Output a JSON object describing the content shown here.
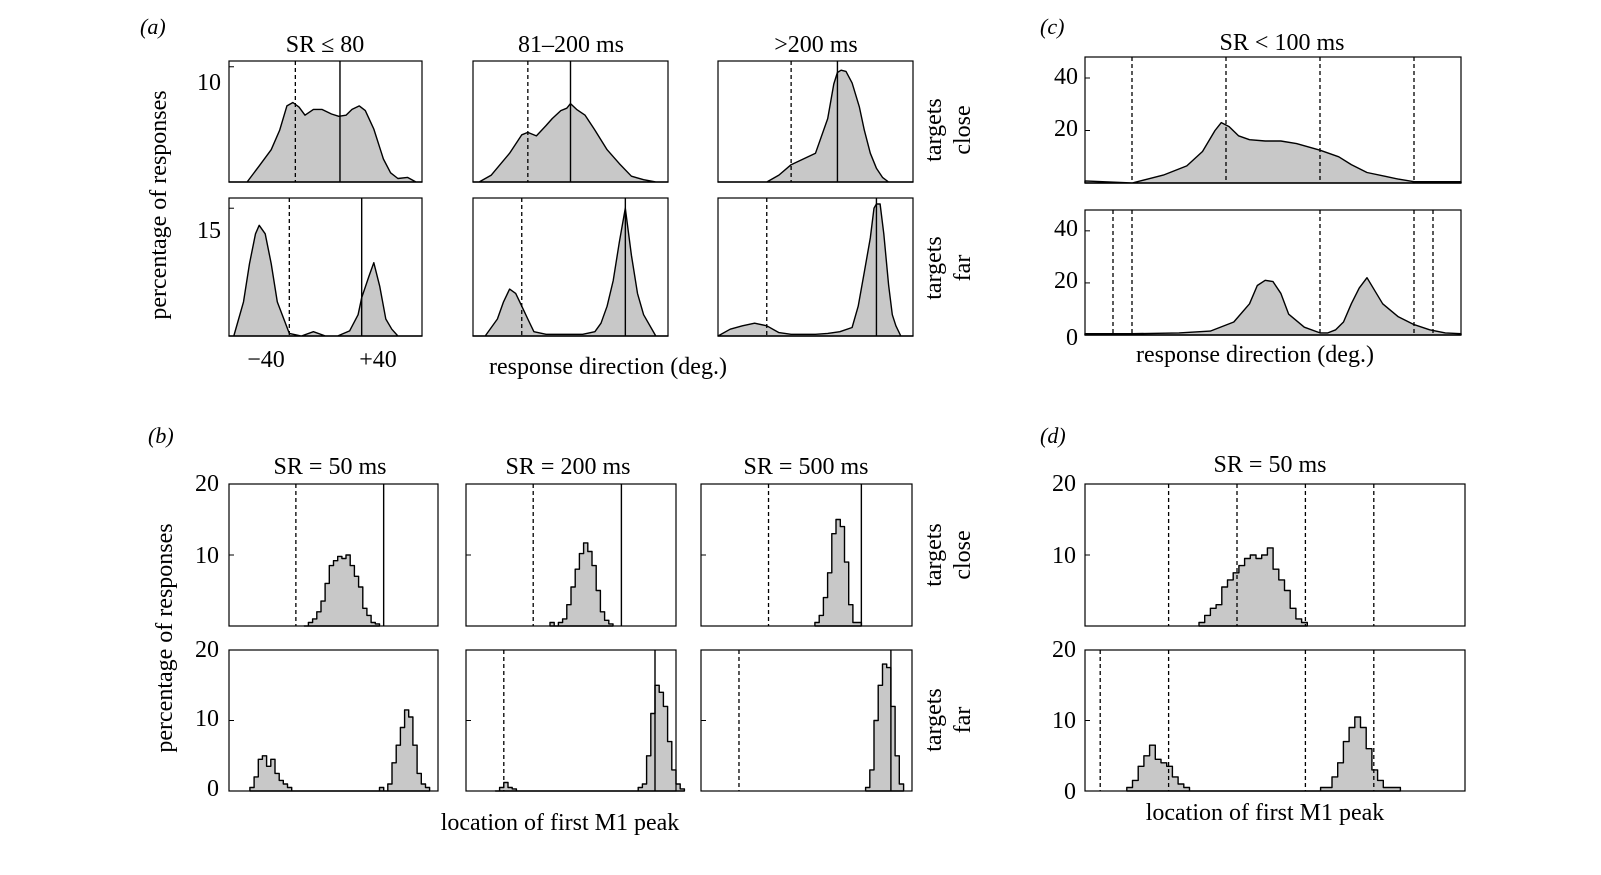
{
  "chart_data": [
    {
      "id": "a",
      "panel_label": "(a)",
      "type": "area",
      "xlabel": "response direction (deg.)",
      "ylabel": "percentage of responses",
      "row_labels": [
        [
          "targets",
          "close"
        ],
        [
          "targets",
          "far"
        ]
      ],
      "x_tick_labels": [
        "−40",
        "+40"
      ],
      "x_ticks": [
        -40,
        40
      ],
      "xlim": [
        -80,
        80
      ],
      "row_ylims": [
        [
          0,
          10.5
        ],
        [
          0,
          16.2
        ]
      ],
      "row_y_tick_labels": [
        [
          "10"
        ],
        [
          "15"
        ]
      ],
      "row_y_ticks": [
        [
          10
        ],
        [
          15
        ]
      ],
      "columns": [
        {
          "title": "SR ≤ 80",
          "rows": [
            {
              "dashed": [
                -25
              ],
              "solid": [
                12
              ],
              "x": [
                -80,
                -65,
                -55,
                -45,
                -38,
                -32,
                -27,
                -22,
                -17,
                -10,
                -3,
                5,
                11,
                17,
                22,
                28,
                33,
                40,
                48,
                54,
                60,
                68,
                75,
                80
              ],
              "y": [
                0,
                0,
                1.4,
                2.8,
                4.5,
                6.6,
                6.9,
                6.5,
                5.8,
                6.3,
                6.3,
                5.9,
                5.7,
                5.8,
                6.3,
                6.6,
                6.2,
                4.6,
                2.0,
                0.8,
                0.3,
                0.4,
                0,
                0
              ]
            },
            {
              "dashed": [
                -30
              ],
              "solid": [
                30
              ],
              "x": [
                -80,
                -76,
                -68,
                -63,
                -58,
                -55,
                -50,
                -45,
                -40,
                -30,
                -20,
                -10,
                0,
                10,
                20,
                27,
                30,
                36,
                40,
                45,
                50,
                55,
                60,
                80
              ],
              "y": [
                0,
                0,
                4.0,
                8.5,
                12.0,
                13.0,
                12.0,
                8.5,
                4.0,
                0.3,
                0,
                0.5,
                0,
                0,
                0.6,
                2.5,
                4.5,
                7.0,
                8.6,
                5.8,
                2.0,
                0.8,
                0,
                0
              ]
            }
          ]
        },
        {
          "title": "81–200 ms",
          "rows": [
            {
              "dashed": [
                -35
              ],
              "solid": [
                0
              ],
              "x": [
                -80,
                -75,
                -65,
                -50,
                -40,
                -35,
                -28,
                -20,
                -15,
                -8,
                -3,
                0,
                5,
                12,
                20,
                30,
                40,
                50,
                60,
                70,
                80
              ],
              "y": [
                0,
                0,
                0.6,
                2.5,
                4.1,
                4.3,
                4.0,
                4.9,
                5.5,
                6.2,
                6.4,
                6.8,
                6.3,
                5.8,
                4.5,
                2.8,
                1.6,
                0.5,
                0.2,
                0,
                0
              ]
            },
            {
              "dashed": [
                -40
              ],
              "solid": [
                45
              ],
              "x": [
                -80,
                -70,
                -60,
                -55,
                -50,
                -45,
                -40,
                -35,
                -30,
                -20,
                -10,
                0,
                10,
                20,
                25,
                30,
                35,
                40,
                45,
                50,
                55,
                60,
                70,
                80
              ],
              "y": [
                0,
                0,
                2.0,
                4.0,
                5.5,
                5.0,
                3.5,
                2.0,
                0.5,
                0.2,
                0.2,
                0.2,
                0.2,
                0.5,
                1.5,
                3.5,
                6.5,
                11.0,
                15.0,
                9.5,
                5.0,
                2.5,
                0,
                0
              ]
            }
          ]
        },
        {
          "title": ">200 ms",
          "rows": [
            {
              "dashed": [
                -20
              ],
              "solid": [
                18
              ],
              "x": [
                -80,
                -70,
                -60,
                -50,
                -40,
                -30,
                -20,
                -10,
                0,
                10,
                15,
                18,
                21,
                25,
                30,
                36,
                40,
                45,
                50,
                55,
                60,
                70,
                80
              ],
              "y": [
                0,
                0,
                0,
                0,
                0,
                0.6,
                1.5,
                2.0,
                2.5,
                5.5,
                8.5,
                9.5,
                9.7,
                9.6,
                8.6,
                6.5,
                4.5,
                2.5,
                1.2,
                0.4,
                0,
                0,
                0
              ]
            },
            {
              "dashed": [
                -40
              ],
              "solid": [
                50
              ],
              "x": [
                -80,
                -70,
                -60,
                -50,
                -40,
                -30,
                -20,
                -10,
                0,
                10,
                20,
                30,
                35,
                40,
                45,
                48,
                50,
                53,
                56,
                60,
                63,
                66,
                70,
                80
              ],
              "y": [
                0,
                0.8,
                1.2,
                1.5,
                1.2,
                0.4,
                0.2,
                0.2,
                0.2,
                0.3,
                0.5,
                1.0,
                3.5,
                7.5,
                11.5,
                15.0,
                15.5,
                15.5,
                12.0,
                6.0,
                2.5,
                1.2,
                0,
                0
              ]
            }
          ]
        }
      ]
    },
    {
      "id": "c",
      "panel_label": "(c)",
      "type": "area",
      "title": "SR < 100 ms",
      "xlabel": "response direction (deg.)",
      "ylim": [
        0,
        48
      ],
      "xlim": [
        -120,
        120
      ],
      "y_tick_labels_top": [
        "20",
        "40"
      ],
      "y_ticks_top": [
        20,
        40
      ],
      "y_tick_labels_bottom": [
        "0",
        "20",
        "40"
      ],
      "y_ticks_bottom": [
        0,
        20,
        40
      ],
      "rows": [
        {
          "dashed": [
            -90,
            -30,
            30,
            90
          ],
          "x": [
            -120,
            -90,
            -80,
            -70,
            -55,
            -45,
            -37,
            -33,
            -28,
            -22,
            -15,
            -5,
            5,
            15,
            30,
            42,
            50,
            60,
            72,
            80,
            90,
            100,
            110,
            120
          ],
          "y": [
            0.8,
            0,
            1.5,
            3.0,
            6.5,
            12.0,
            20.0,
            23.0,
            21.5,
            18.0,
            16.5,
            16.0,
            16.0,
            15.0,
            12.5,
            10.0,
            7.0,
            4.0,
            2.5,
            1.5,
            0.5,
            0.5,
            0.5,
            0.5
          ]
        },
        {
          "dashed": [
            -150,
            -90,
            30,
            90,
            150
          ],
          "x": [
            -120,
            -90,
            -60,
            -40,
            -25,
            -15,
            -10,
            -5,
            0,
            5,
            10,
            20,
            30,
            35,
            40,
            45,
            50,
            55,
            60,
            65,
            70,
            80,
            90,
            100,
            110,
            120
          ],
          "y": [
            0.5,
            0.5,
            0.8,
            1.5,
            5.0,
            12.0,
            19.0,
            21.0,
            20.5,
            16.0,
            8.0,
            3.0,
            0.8,
            0.8,
            2.0,
            5.0,
            12.0,
            18.0,
            22.0,
            17.0,
            12.0,
            7.0,
            4.0,
            2.0,
            0.8,
            0.5
          ]
        }
      ]
    },
    {
      "id": "b",
      "panel_label": "(b)",
      "type": "histogram",
      "xlabel": "location of first M1 peak",
      "ylabel": "percentage of responses",
      "row_labels": [
        [
          "targets",
          "close"
        ],
        [
          "targets",
          "far"
        ]
      ],
      "ylim": [
        0,
        20
      ],
      "y_tick_labels_top": [
        "10",
        "20"
      ],
      "y_ticks_top": [
        10,
        20
      ],
      "y_tick_labels_bottom": [
        "0",
        "10",
        "20"
      ],
      "y_ticks_bottom": [
        0,
        10,
        20
      ],
      "xlim": [
        0,
        100
      ],
      "columns": [
        {
          "title": "SR = 50 ms",
          "rows": [
            {
              "dashed": [
                32
              ],
              "solid": [
                74
              ],
              "bin_start": 36,
              "bin_width": 2,
              "counts": [
                0,
                0.5,
                1,
                2,
                3.5,
                6,
                8.5,
                9.2,
                9.8,
                9.5,
                10,
                8.5,
                7,
                5.5,
                2.5,
                1.5,
                0.5,
                0.3
              ]
            },
            {
              "dashed": [],
              "solid": [],
              "bin_start": 10,
              "bin_width": 2,
              "counts": [
                0.5,
                2,
                4.5,
                5,
                3.5,
                4.5,
                2.5,
                1.5,
                1,
                0.5,
                0,
                0,
                0,
                0,
                0,
                0,
                0,
                0,
                0,
                0,
                0,
                0,
                0,
                0,
                0,
                0,
                0,
                0,
                0,
                0,
                0,
                0.5,
                0,
                1,
                4,
                6.5,
                9,
                11.5,
                10.5,
                6.5,
                2.5,
                1,
                0.5
              ]
            }
          ]
        },
        {
          "title": "SR = 200 ms",
          "rows": [
            {
              "dashed": [
                32
              ],
              "solid": [
                74
              ],
              "bin_start": 40,
              "bin_width": 2,
              "counts": [
                0.5,
                0,
                0.5,
                1,
                3,
                5.5,
                8,
                10.2,
                11.7,
                10.5,
                8.5,
                5,
                2,
                0.8,
                0.3
              ]
            },
            {
              "dashed": [
                18
              ],
              "solid": [
                90
              ],
              "bin_start": 14,
              "bin_width": 2,
              "counts": [
                0,
                0.5,
                1.2,
                0.5,
                0.3,
                0,
                0,
                0,
                0,
                0,
                0,
                0,
                0,
                0,
                0,
                0,
                0,
                0,
                0,
                0,
                0,
                0,
                0,
                0,
                0,
                0,
                0,
                0,
                0,
                0,
                0,
                0,
                0,
                0,
                0.5,
                1,
                5,
                11,
                15,
                14,
                12,
                7,
                3,
                1,
                0.3
              ]
            }
          ]
        },
        {
          "title": "SR = 500 ms",
          "rows": [
            {
              "dashed": [
                32
              ],
              "solid": [
                76
              ],
              "bin_start": 54,
              "bin_width": 2,
              "counts": [
                0.5,
                1.5,
                4,
                7.5,
                13,
                15,
                14,
                9,
                3,
                0.5,
                0.5
              ]
            },
            {
              "dashed": [
                18
              ],
              "solid": [
                90
              ],
              "bin_start": 78,
              "bin_width": 2,
              "counts": [
                0.5,
                3,
                10,
                15,
                18,
                17.5,
                12,
                5,
                1
              ]
            }
          ]
        }
      ]
    },
    {
      "id": "d",
      "panel_label": "(d)",
      "type": "histogram",
      "title": "SR = 50 ms",
      "xlabel": "location of first M1 peak",
      "ylim": [
        0,
        20
      ],
      "y_tick_labels_top": [
        "10",
        "20"
      ],
      "y_ticks_top": [
        10,
        20
      ],
      "y_tick_labels_bottom": [
        "0",
        "10",
        "20"
      ],
      "y_ticks_bottom": [
        0,
        10,
        20
      ],
      "xlim": [
        0,
        100
      ],
      "rows": [
        {
          "dashed": [
            22,
            40,
            58,
            76
          ],
          "bin_start": 30,
          "bin_width": 1.5,
          "counts": [
            0.5,
            1.5,
            2.5,
            3,
            5.5,
            6.5,
            7.5,
            8.5,
            9.5,
            10,
            9.5,
            10,
            11,
            8,
            6.5,
            5,
            2.5,
            1,
            0.5
          ]
        },
        {
          "dashed": [
            4,
            22,
            58,
            76
          ],
          "bin_start": 11,
          "bin_width": 1.5,
          "counts": [
            0.5,
            1.5,
            3.5,
            5,
            6.5,
            4.5,
            4,
            3.5,
            2,
            1,
            0.5,
            0,
            0,
            0,
            0,
            0,
            0,
            0,
            0,
            0,
            0,
            0,
            0,
            0,
            0,
            0,
            0,
            0,
            0,
            0,
            0,
            0,
            0,
            0,
            0.5,
            0.5,
            2,
            4,
            7,
            9,
            10.5,
            9,
            6,
            3,
            1.5,
            0.5,
            0.5,
            0.5
          ]
        }
      ]
    }
  ]
}
